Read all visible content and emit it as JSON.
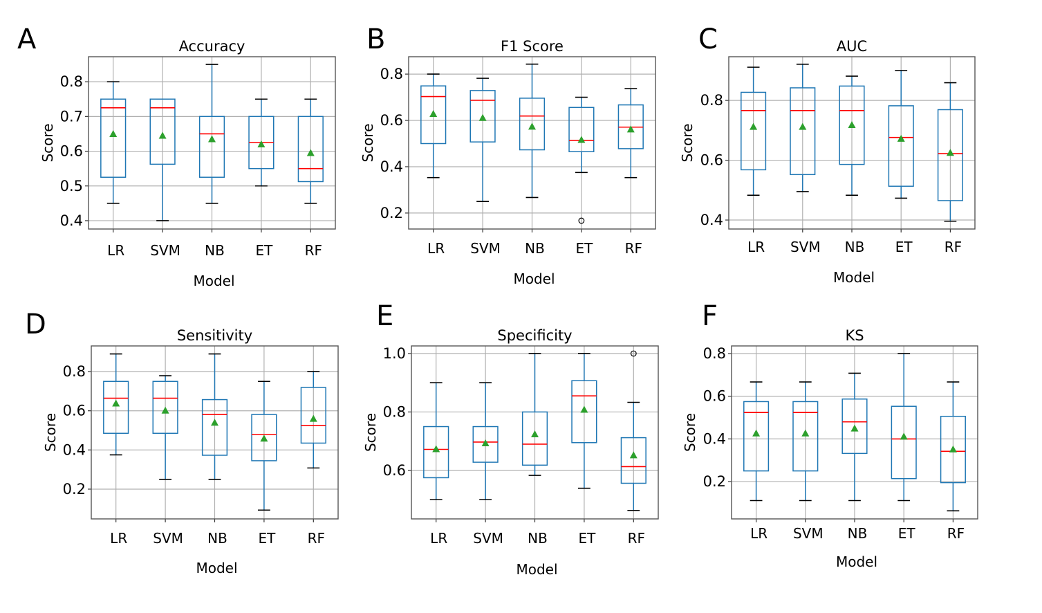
{
  "chart_data": [
    {
      "panel": "A",
      "type": "box",
      "title": "Accuracy",
      "xlabel": "Model",
      "ylabel": "Score",
      "categories": [
        "LR",
        "SVM",
        "NB",
        "ET",
        "RF"
      ],
      "yticks": [
        0.4,
        0.5,
        0.6,
        0.7,
        0.8
      ],
      "ytick_labels": [
        "0.4",
        "0.5",
        "0.6",
        "0.7",
        "0.8"
      ],
      "ylim": [
        0.376,
        0.872
      ],
      "grid": true,
      "series": [
        {
          "name": "LR",
          "whisker_low": 0.45,
          "q1": 0.525,
          "median": 0.725,
          "q3": 0.75,
          "whisker_high": 0.8,
          "mean": 0.649,
          "outliers": []
        },
        {
          "name": "SVM",
          "whisker_low": 0.4,
          "q1": 0.5625,
          "median": 0.725,
          "q3": 0.75,
          "whisker_high": 0.75,
          "mean": 0.644,
          "outliers": []
        },
        {
          "name": "NB",
          "whisker_low": 0.45,
          "q1": 0.525,
          "median": 0.65,
          "q3": 0.7,
          "whisker_high": 0.85,
          "mean": 0.634,
          "outliers": []
        },
        {
          "name": "ET",
          "whisker_low": 0.5,
          "q1": 0.55,
          "median": 0.625,
          "q3": 0.7,
          "whisker_high": 0.75,
          "mean": 0.619,
          "outliers": []
        },
        {
          "name": "RF",
          "whisker_low": 0.45,
          "q1": 0.5125,
          "median": 0.55,
          "q3": 0.7,
          "whisker_high": 0.75,
          "mean": 0.594,
          "outliers": []
        }
      ]
    },
    {
      "panel": "B",
      "type": "box",
      "title": "F1 Score",
      "xlabel": "Model",
      "ylabel": "Score",
      "categories": [
        "LR",
        "SVM",
        "NB",
        "ET",
        "RF"
      ],
      "yticks": [
        0.2,
        0.4,
        0.6,
        0.8
      ],
      "ytick_labels": [
        "0.2",
        "0.4",
        "0.6",
        "0.8"
      ],
      "ylim": [
        0.131,
        0.875
      ],
      "grid": true,
      "series": [
        {
          "name": "LR",
          "whisker_low": 0.353,
          "q1": 0.5,
          "median": 0.703,
          "q3": 0.749,
          "whisker_high": 0.8,
          "mean": 0.627,
          "outliers": []
        },
        {
          "name": "SVM",
          "whisker_low": 0.25,
          "q1": 0.507,
          "median": 0.687,
          "q3": 0.729,
          "whisker_high": 0.782,
          "mean": 0.61,
          "outliers": []
        },
        {
          "name": "NB",
          "whisker_low": 0.267,
          "q1": 0.473,
          "median": 0.619,
          "q3": 0.696,
          "whisker_high": 0.843,
          "mean": 0.572,
          "outliers": []
        },
        {
          "name": "ET",
          "whisker_low": 0.375,
          "q1": 0.465,
          "median": 0.514,
          "q3": 0.656,
          "whisker_high": 0.7,
          "mean": 0.515,
          "outliers": [
            0.167
          ]
        },
        {
          "name": "RF",
          "whisker_low": 0.353,
          "q1": 0.478,
          "median": 0.571,
          "q3": 0.667,
          "whisker_high": 0.737,
          "mean": 0.56,
          "outliers": []
        }
      ]
    },
    {
      "panel": "C",
      "type": "box",
      "title": "AUC",
      "xlabel": "Model",
      "ylabel": "Score",
      "categories": [
        "LR",
        "SVM",
        "NB",
        "ET",
        "RF"
      ],
      "yticks": [
        0.4,
        0.6,
        0.8
      ],
      "ytick_labels": [
        "0.4",
        "0.6",
        "0.8"
      ],
      "ylim": [
        0.37,
        0.946
      ],
      "grid": true,
      "series": [
        {
          "name": "LR",
          "whisker_low": 0.483,
          "q1": 0.568,
          "median": 0.766,
          "q3": 0.827,
          "whisker_high": 0.911,
          "mean": 0.711,
          "outliers": []
        },
        {
          "name": "SVM",
          "whisker_low": 0.495,
          "q1": 0.552,
          "median": 0.766,
          "q3": 0.842,
          "whisker_high": 0.921,
          "mean": 0.711,
          "outliers": []
        },
        {
          "name": "NB",
          "whisker_low": 0.483,
          "q1": 0.586,
          "median": 0.766,
          "q3": 0.848,
          "whisker_high": 0.881,
          "mean": 0.717,
          "outliers": []
        },
        {
          "name": "ET",
          "whisker_low": 0.473,
          "q1": 0.513,
          "median": 0.676,
          "q3": 0.782,
          "whisker_high": 0.9,
          "mean": 0.671,
          "outliers": []
        },
        {
          "name": "RF",
          "whisker_low": 0.396,
          "q1": 0.465,
          "median": 0.622,
          "q3": 0.769,
          "whisker_high": 0.859,
          "mean": 0.624,
          "outliers": []
        }
      ]
    },
    {
      "panel": "D",
      "type": "box",
      "title": "Sensitivity",
      "xlabel": "Model",
      "ylabel": "Score",
      "categories": [
        "LR",
        "SVM",
        "NB",
        "ET",
        "RF"
      ],
      "yticks": [
        0.2,
        0.4,
        0.6,
        0.8
      ],
      "ytick_labels": [
        "0.2",
        "0.4",
        "0.6",
        "0.8"
      ],
      "ylim": [
        0.048,
        0.931
      ],
      "grid": true,
      "series": [
        {
          "name": "LR",
          "whisker_low": 0.375,
          "q1": 0.485,
          "median": 0.664,
          "q3": 0.75,
          "whisker_high": 0.89,
          "mean": 0.636,
          "outliers": []
        },
        {
          "name": "SVM",
          "whisker_low": 0.25,
          "q1": 0.485,
          "median": 0.664,
          "q3": 0.75,
          "whisker_high": 0.779,
          "mean": 0.6,
          "outliers": []
        },
        {
          "name": "NB",
          "whisker_low": 0.25,
          "q1": 0.373,
          "median": 0.581,
          "q3": 0.657,
          "whisker_high": 0.89,
          "mean": 0.538,
          "outliers": []
        },
        {
          "name": "ET",
          "whisker_low": 0.093,
          "q1": 0.345,
          "median": 0.478,
          "q3": 0.581,
          "whisker_high": 0.75,
          "mean": 0.457,
          "outliers": []
        },
        {
          "name": "RF",
          "whisker_low": 0.308,
          "q1": 0.435,
          "median": 0.524,
          "q3": 0.719,
          "whisker_high": 0.8,
          "mean": 0.558,
          "outliers": []
        }
      ]
    },
    {
      "panel": "E",
      "type": "box",
      "title": "Specificity",
      "xlabel": "Model",
      "ylabel": "Score",
      "categories": [
        "LR",
        "SVM",
        "NB",
        "ET",
        "RF"
      ],
      "yticks": [
        0.6,
        0.8,
        1.0
      ],
      "ytick_labels": [
        "0.6",
        "0.8",
        "1.0"
      ],
      "ylim": [
        0.434,
        1.026
      ],
      "grid": true,
      "series": [
        {
          "name": "LR",
          "whisker_low": 0.5,
          "q1": 0.575,
          "median": 0.672,
          "q3": 0.75,
          "whisker_high": 0.9,
          "mean": 0.672,
          "outliers": []
        },
        {
          "name": "SVM",
          "whisker_low": 0.5,
          "q1": 0.628,
          "median": 0.697,
          "q3": 0.75,
          "whisker_high": 0.9,
          "mean": 0.692,
          "outliers": []
        },
        {
          "name": "NB",
          "whisker_low": 0.583,
          "q1": 0.618,
          "median": 0.69,
          "q3": 0.8,
          "whisker_high": 1.0,
          "mean": 0.723,
          "outliers": []
        },
        {
          "name": "ET",
          "whisker_low": 0.539,
          "q1": 0.695,
          "median": 0.855,
          "q3": 0.907,
          "whisker_high": 1.0,
          "mean": 0.807,
          "outliers": []
        },
        {
          "name": "RF",
          "whisker_low": 0.463,
          "q1": 0.556,
          "median": 0.613,
          "q3": 0.712,
          "whisker_high": 0.833,
          "mean": 0.651,
          "outliers": [
            1.0
          ]
        }
      ]
    },
    {
      "panel": "F",
      "type": "box",
      "title": "KS",
      "xlabel": "Model",
      "ylabel": "Score",
      "categories": [
        "LR",
        "SVM",
        "NB",
        "ET",
        "RF"
      ],
      "yticks": [
        0.2,
        0.4,
        0.6,
        0.8
      ],
      "ytick_labels": [
        "0.2",
        "0.4",
        "0.6",
        "0.8"
      ],
      "ylim": [
        0.025,
        0.836
      ],
      "grid": true,
      "series": [
        {
          "name": "LR",
          "whisker_low": 0.111,
          "q1": 0.25,
          "median": 0.524,
          "q3": 0.575,
          "whisker_high": 0.667,
          "mean": 0.425,
          "outliers": []
        },
        {
          "name": "SVM",
          "whisker_low": 0.111,
          "q1": 0.25,
          "median": 0.524,
          "q3": 0.575,
          "whisker_high": 0.667,
          "mean": 0.425,
          "outliers": []
        },
        {
          "name": "NB",
          "whisker_low": 0.111,
          "q1": 0.332,
          "median": 0.48,
          "q3": 0.587,
          "whisker_high": 0.708,
          "mean": 0.448,
          "outliers": []
        },
        {
          "name": "ET",
          "whisker_low": 0.111,
          "q1": 0.214,
          "median": 0.4,
          "q3": 0.553,
          "whisker_high": 0.8,
          "mean": 0.41,
          "outliers": []
        },
        {
          "name": "RF",
          "whisker_low": 0.063,
          "q1": 0.195,
          "median": 0.342,
          "q3": 0.506,
          "whisker_high": 0.667,
          "mean": 0.35,
          "outliers": []
        }
      ]
    }
  ],
  "colors": {
    "box": "#1f77b4",
    "median": "#ff0000",
    "mean_marker": "#2ca02c",
    "cap": "#000000",
    "grid": "#b0b0b0"
  }
}
